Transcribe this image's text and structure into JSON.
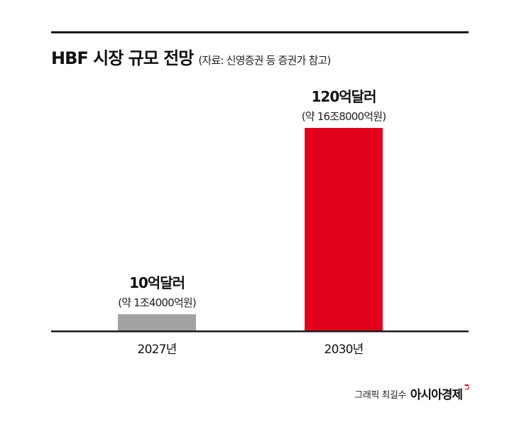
{
  "header": {
    "title": "HBF 시장 규모 전망",
    "source": "(자료: 신영증권 등 증권가 참고)"
  },
  "footer": {
    "credit": "그래픽 최길수",
    "brand": "아시아경제"
  },
  "colors": {
    "bar_2027": "#a3a3a3",
    "bar_2030": "#e3001b",
    "rule": "#1b1b1b"
  },
  "chart_data": {
    "type": "bar",
    "categories": [
      "2027년",
      "2030년"
    ],
    "values": [
      10,
      120
    ],
    "unit": "억달러",
    "value_labels": [
      "10억달러",
      "120억달러"
    ],
    "sub_labels": [
      "(약 1조4000억원)",
      "(약 16조8000억원)"
    ],
    "ylim": [
      0,
      120
    ],
    "grid": false,
    "legend": "none"
  }
}
